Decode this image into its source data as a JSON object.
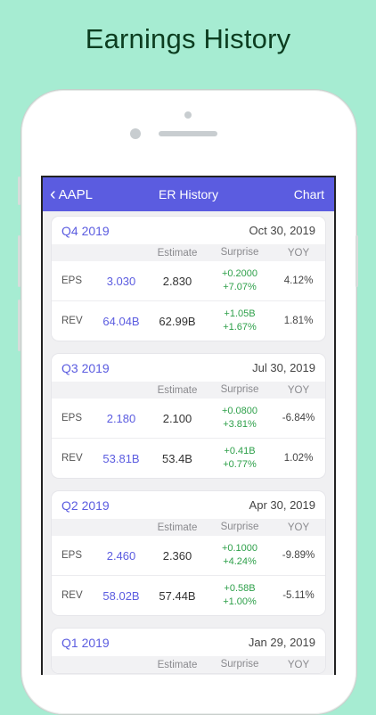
{
  "headline": "Earnings History",
  "nav": {
    "back_label": "AAPL",
    "title": "ER History",
    "chart_label": "Chart"
  },
  "columns": {
    "estimate": "Estimate",
    "surprise": "Surprise",
    "yoy": "YOY"
  },
  "reports": [
    {
      "quarter": "Q4 2019",
      "date": "Oct 30, 2019",
      "rows": [
        {
          "label": "EPS",
          "actual": "3.030",
          "estimate": "2.830",
          "surprise_abs": "+0.2000",
          "surprise_pct": "+7.07%",
          "yoy": "4.12%"
        },
        {
          "label": "REV",
          "actual": "64.04B",
          "estimate": "62.99B",
          "surprise_abs": "+1.05B",
          "surprise_pct": "+1.67%",
          "yoy": "1.81%"
        }
      ]
    },
    {
      "quarter": "Q3 2019",
      "date": "Jul 30, 2019",
      "rows": [
        {
          "label": "EPS",
          "actual": "2.180",
          "estimate": "2.100",
          "surprise_abs": "+0.0800",
          "surprise_pct": "+3.81%",
          "yoy": "-6.84%"
        },
        {
          "label": "REV",
          "actual": "53.81B",
          "estimate": "53.4B",
          "surprise_abs": "+0.41B",
          "surprise_pct": "+0.77%",
          "yoy": "1.02%"
        }
      ]
    },
    {
      "quarter": "Q2 2019",
      "date": "Apr 30, 2019",
      "rows": [
        {
          "label": "EPS",
          "actual": "2.460",
          "estimate": "2.360",
          "surprise_abs": "+0.1000",
          "surprise_pct": "+4.24%",
          "yoy": "-9.89%"
        },
        {
          "label": "REV",
          "actual": "58.02B",
          "estimate": "57.44B",
          "surprise_abs": "+0.58B",
          "surprise_pct": "+1.00%",
          "yoy": "-5.11%"
        }
      ]
    },
    {
      "quarter": "Q1 2019",
      "date": "Jan 29, 2019",
      "rows": []
    }
  ],
  "colors": {
    "background": "#a6ecd2",
    "accent": "#5b5ce0",
    "positive": "#2ea04a"
  }
}
